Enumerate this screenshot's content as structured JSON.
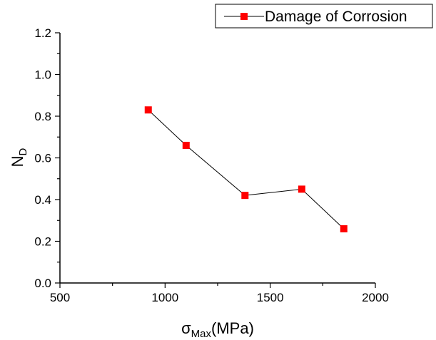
{
  "chart_data": {
    "type": "line",
    "series": [
      {
        "name": "Damage of Corrosion",
        "x": [
          920,
          1100,
          1380,
          1650,
          1850
        ],
        "y": [
          0.83,
          0.66,
          0.42,
          0.45,
          0.26
        ]
      }
    ],
    "xlabel": {
      "main": "σ",
      "sub": "Max",
      "unit": "(MPa)"
    },
    "ylabel": {
      "main": "N",
      "sub": "D"
    },
    "xlim": [
      500,
      2000
    ],
    "ylim": [
      0.0,
      1.2
    ],
    "xticks": [
      500,
      1000,
      1500,
      2000
    ],
    "xtick_labels": [
      "500",
      "1000",
      "1500",
      "2000"
    ],
    "yticks": [
      0.0,
      0.2,
      0.4,
      0.6,
      0.8,
      1.0,
      1.2
    ],
    "ytick_labels": [
      "0.0",
      "0.2",
      "0.4",
      "0.6",
      "0.8",
      "1.0",
      "1.2"
    ],
    "grid": false,
    "legend_position": "top-right",
    "colors": {
      "marker": "#ff0000",
      "line": "#000000"
    }
  }
}
